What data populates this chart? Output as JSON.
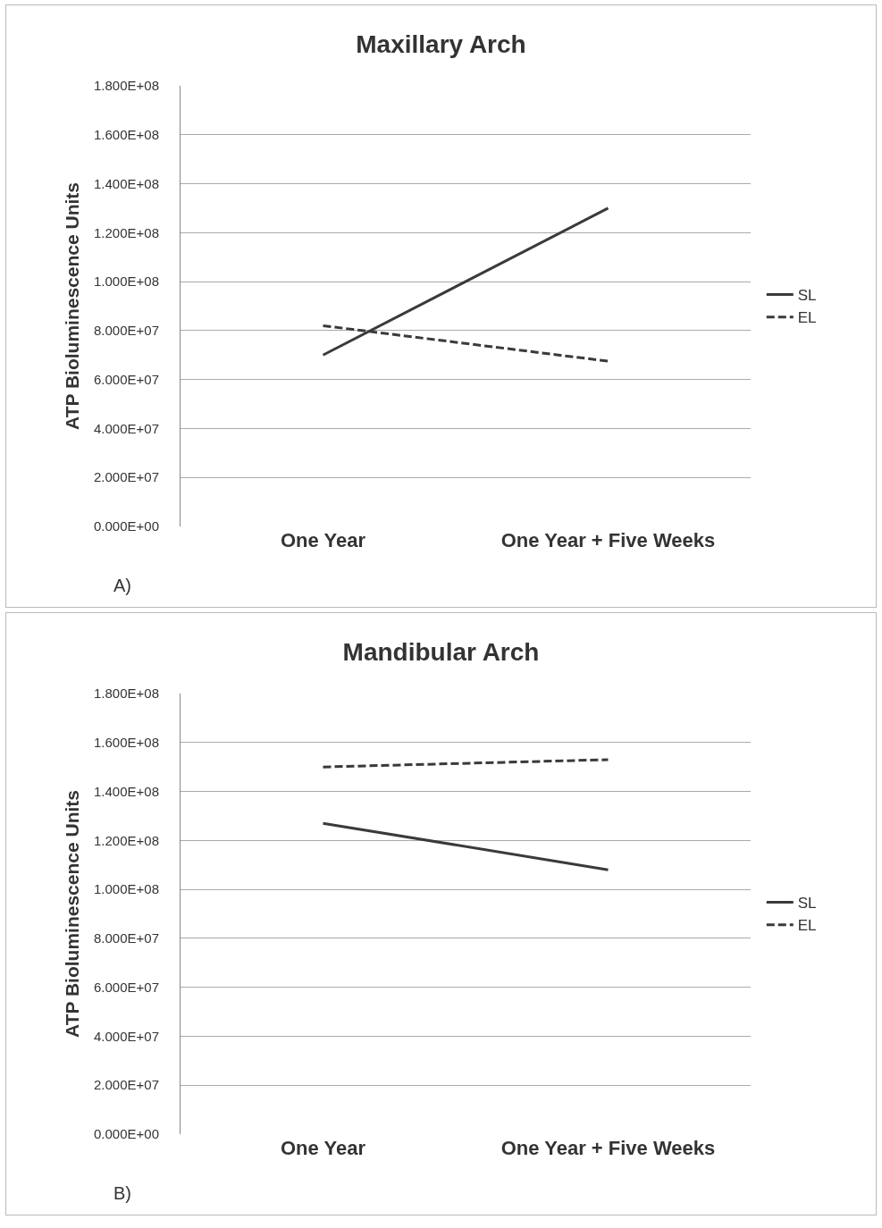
{
  "chart_data": [
    {
      "type": "line",
      "title": "Maxillary Arch",
      "ylabel": "ATP Bioluminescence Units",
      "categories": [
        "One Year",
        "One Year + Five Weeks"
      ],
      "series": [
        {
          "name": "SL",
          "color": "#3a3a3a",
          "values": [
            70000000,
            130000000
          ],
          "line_style": "solid"
        },
        {
          "name": "EL",
          "color": "#3a3a3a",
          "values": [
            82000000,
            67500000
          ],
          "line_style": "dashed"
        }
      ],
      "ylim": [
        0,
        180000000
      ],
      "yticks": [
        {
          "value": 0,
          "label": "0.000E+00"
        },
        {
          "value": 20000000,
          "label": "2.000E+07"
        },
        {
          "value": 40000000,
          "label": "4.000E+07"
        },
        {
          "value": 60000000,
          "label": "6.000E+07"
        },
        {
          "value": 80000000,
          "label": "8.000E+07"
        },
        {
          "value": 100000000,
          "label": "1.000E+08"
        },
        {
          "value": 120000000,
          "label": "1.200E+08"
        },
        {
          "value": 140000000,
          "label": "1.400E+08"
        },
        {
          "value": 160000000,
          "label": "1.600E+08"
        },
        {
          "value": 180000000,
          "label": "1.800E+08"
        }
      ],
      "grid": "y",
      "legend": "right",
      "marker": "none",
      "annotations": [
        "A)"
      ]
    },
    {
      "type": "line",
      "title": "Mandibular Arch",
      "ylabel": "ATP Bioluminescence Units",
      "categories": [
        "One Year",
        "One Year + Five Weeks"
      ],
      "series": [
        {
          "name": "SL",
          "color": "#3a3a3a",
          "values": [
            127000000,
            108000000
          ],
          "line_style": "solid"
        },
        {
          "name": "EL",
          "color": "#3a3a3a",
          "values": [
            150000000,
            153000000
          ],
          "line_style": "dashed"
        }
      ],
      "ylim": [
        0,
        180000000
      ],
      "yticks": [
        {
          "value": 0,
          "label": "0.000E+00"
        },
        {
          "value": 20000000,
          "label": "2.000E+07"
        },
        {
          "value": 40000000,
          "label": "4.000E+07"
        },
        {
          "value": 60000000,
          "label": "6.000E+07"
        },
        {
          "value": 80000000,
          "label": "8.000E+07"
        },
        {
          "value": 100000000,
          "label": "1.000E+08"
        },
        {
          "value": 120000000,
          "label": "1.200E+08"
        },
        {
          "value": 140000000,
          "label": "1.400E+08"
        },
        {
          "value": 160000000,
          "label": "1.600E+08"
        },
        {
          "value": 180000000,
          "label": "1.800E+08"
        }
      ],
      "grid": "y",
      "legend": "right",
      "marker": "none",
      "annotations": [
        "B)"
      ]
    }
  ]
}
